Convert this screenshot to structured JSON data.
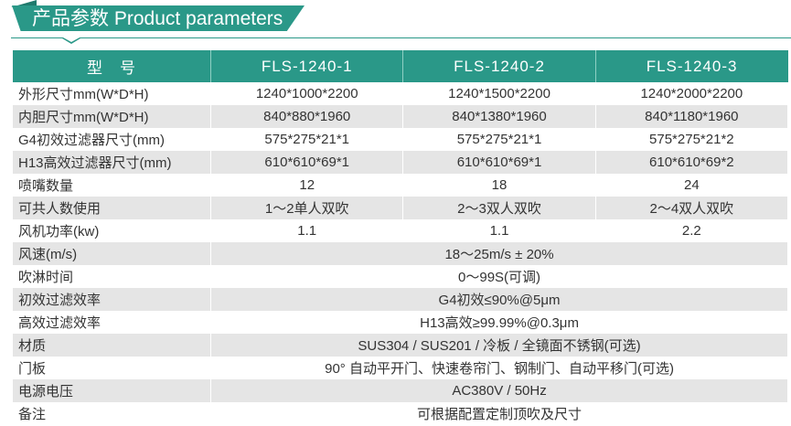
{
  "title": "产品参数 Product parameters",
  "header": [
    "型　号",
    "FLS-1240-1",
    "FLS-1240-2",
    "FLS-1240-3"
  ],
  "rows": [
    {
      "label": "外形尺寸mm(W*D*H)",
      "values": [
        "1240*1000*2200",
        "1240*1500*2200",
        "1240*2000*2200"
      ]
    },
    {
      "label": "内胆尺寸mm(W*D*H)",
      "values": [
        "840*880*1960",
        "840*1380*1960",
        "840*1180*1960"
      ]
    },
    {
      "label": "G4初效过滤器尺寸(mm)",
      "values": [
        "575*275*21*1",
        "575*275*21*1",
        "575*275*21*2"
      ]
    },
    {
      "label": "H13高效过滤器尺寸(mm)",
      "values": [
        "610*610*69*1",
        "610*610*69*1",
        "610*610*69*2"
      ]
    },
    {
      "label": "喷嘴数量",
      "values": [
        "12",
        "18",
        "24"
      ]
    },
    {
      "label": "可共人数使用",
      "values": [
        "1～2单人双吹",
        "2～3双人双吹",
        "2～4双人双吹"
      ]
    },
    {
      "label": "风机功率(kw)",
      "values": [
        "1.1",
        "1.1",
        "2.2"
      ]
    },
    {
      "label": "风速(m/s)",
      "value": "18～25m/s ± 20%"
    },
    {
      "label": "吹淋时间",
      "value": "0～99S(可调)"
    },
    {
      "label": "初效过滤效率",
      "value": "G4初效≤90%@5μm"
    },
    {
      "label": "高效过滤效率",
      "value": "H13高效≥99.99%@0.3μm"
    },
    {
      "label": "材质",
      "value": "SUS304 / SUS201 / 冷板 / 全镜面不锈钢(可选)"
    },
    {
      "label": "门板",
      "value": "90° 自动平开门、快速卷帘门、钢制门、自动平移门(可选)"
    },
    {
      "label": "电源电压",
      "value": "AC380V / 50Hz"
    },
    {
      "label": "备注",
      "value": "可根据配置定制顶吹及尺寸"
    }
  ]
}
